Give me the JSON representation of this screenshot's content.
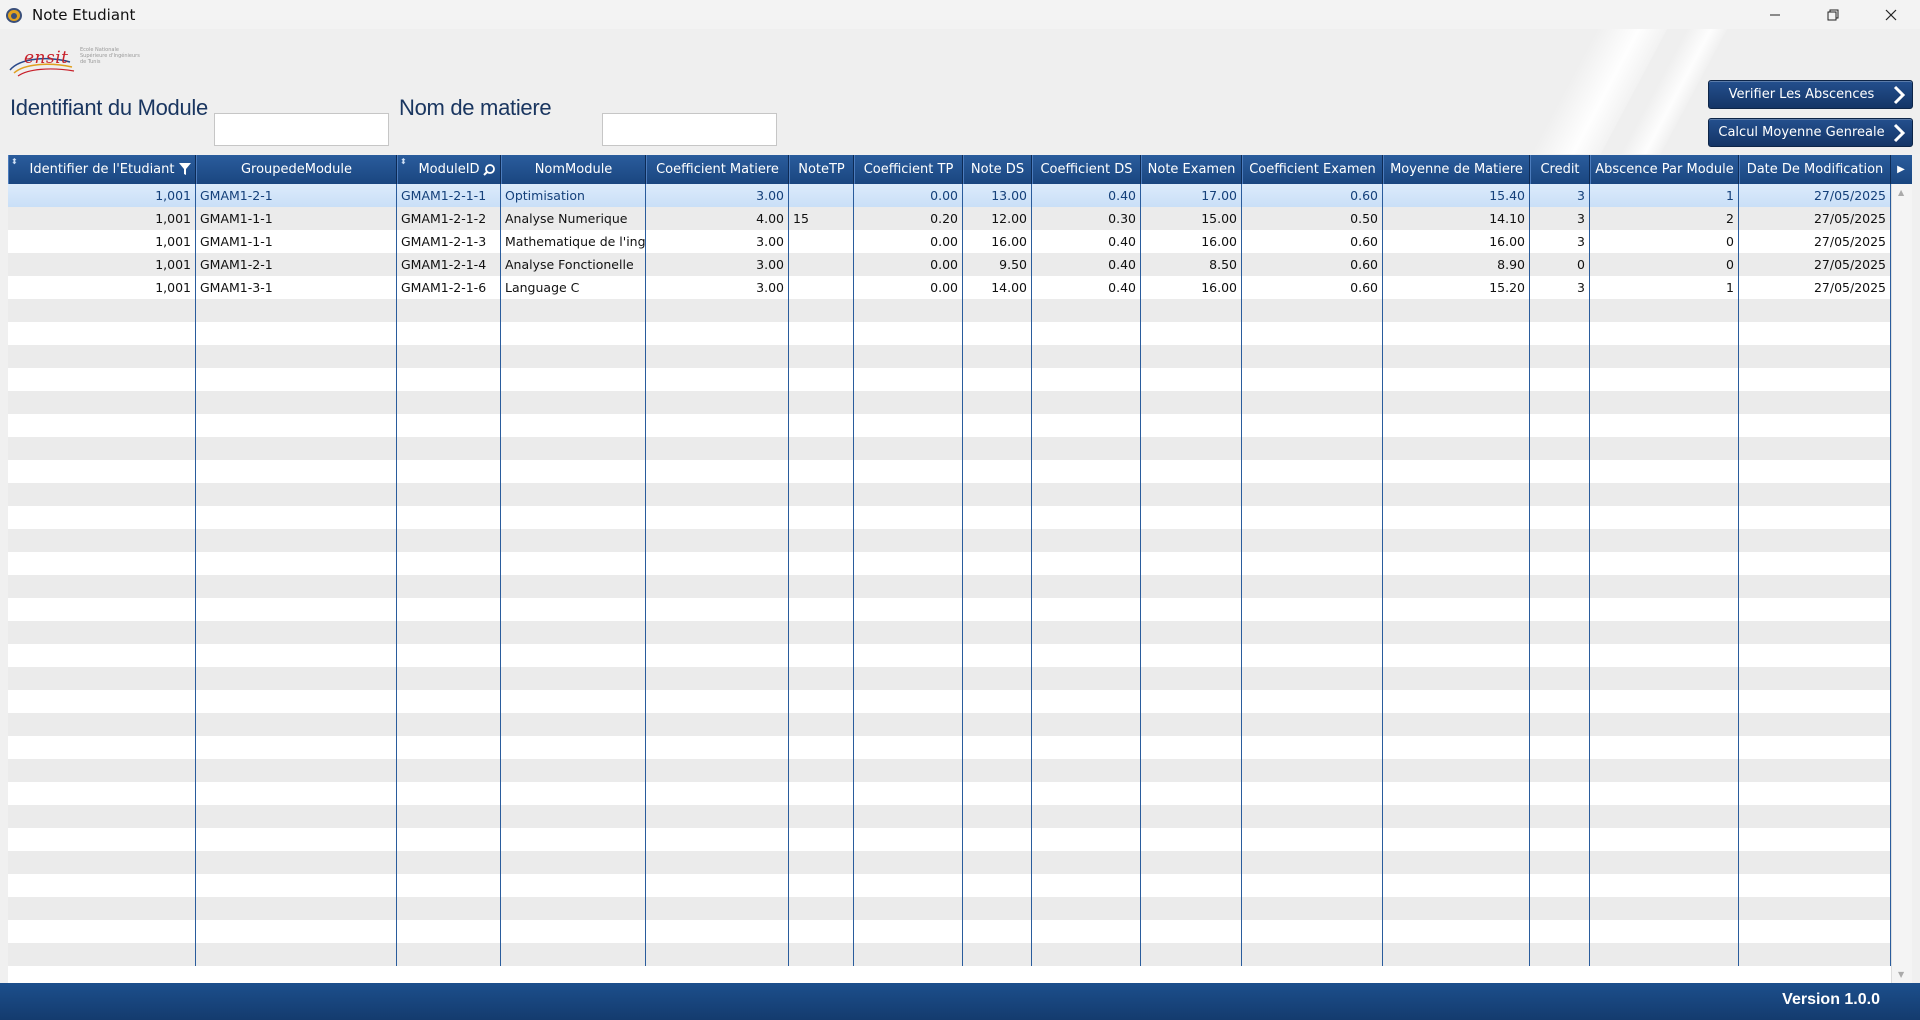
{
  "window": {
    "title": "Note Etudiant"
  },
  "header": {
    "logo_text": "ensit",
    "logo_subtext": "Ecole Nationale Supérieure d'Ingénieurs de Tunis",
    "module_id_label": "Identifiant du Module",
    "module_id_value": "",
    "subject_name_label": "Nom de matiere",
    "subject_name_value": "",
    "verify_absences_label": "Verifier Les Abscences",
    "compute_average_label": "Calcul Moyenne Genreale"
  },
  "grid": {
    "columns": [
      {
        "label": "Identifier de l'Etudiant",
        "width": 188,
        "align": "r",
        "sort": true,
        "filter": "funnel"
      },
      {
        "label": "GroupedeModule",
        "width": 201,
        "align": "l",
        "sort": false,
        "filter": ""
      },
      {
        "label": "ModuleID",
        "width": 104,
        "align": "l",
        "sort": true,
        "filter": "search"
      },
      {
        "label": "NomModule",
        "width": 145,
        "align": "l",
        "sort": false,
        "filter": ""
      },
      {
        "label": "Coefficient Matiere",
        "width": 143,
        "align": "r",
        "sort": false,
        "filter": ""
      },
      {
        "label": "NoteTP",
        "width": 65,
        "align": "l",
        "sort": false,
        "filter": ""
      },
      {
        "label": "Coefficient TP",
        "width": 109,
        "align": "r",
        "sort": false,
        "filter": ""
      },
      {
        "label": "Note DS",
        "width": 69,
        "align": "r",
        "sort": false,
        "filter": ""
      },
      {
        "label": "Coefficient DS",
        "width": 109,
        "align": "r",
        "sort": false,
        "filter": ""
      },
      {
        "label": "Note Examen",
        "width": 101,
        "align": "r",
        "sort": false,
        "filter": ""
      },
      {
        "label": "Coefficient Examen",
        "width": 141,
        "align": "r",
        "sort": false,
        "filter": ""
      },
      {
        "label": "Moyenne de Matiere",
        "width": 147,
        "align": "r",
        "sort": false,
        "filter": ""
      },
      {
        "label": "Credit",
        "width": 60,
        "align": "r",
        "sort": false,
        "filter": ""
      },
      {
        "label": "Abscence Par Module",
        "width": 149,
        "align": "r",
        "sort": false,
        "filter": ""
      },
      {
        "label": "Date De Modification",
        "width": 152,
        "align": "r",
        "sort": false,
        "filter": ""
      }
    ],
    "rows": [
      [
        "1,001",
        "GMAM1-2-1",
        "GMAM1-2-1-1",
        "Optimisation",
        "3.00",
        "",
        "0.00",
        "13.00",
        "0.40",
        "17.00",
        "0.60",
        "15.40",
        "3",
        "1",
        "27/05/2025"
      ],
      [
        "1,001",
        "GMAM1-1-1",
        "GMAM1-2-1-2",
        "Analyse Numerique",
        "4.00",
        "15",
        "0.20",
        "12.00",
        "0.30",
        "15.00",
        "0.50",
        "14.10",
        "3",
        "2",
        "27/05/2025"
      ],
      [
        "1,001",
        "GMAM1-1-1",
        "GMAM1-2-1-3",
        "Mathematique de l'inge",
        "3.00",
        "",
        "0.00",
        "16.00",
        "0.40",
        "16.00",
        "0.60",
        "16.00",
        "3",
        "0",
        "27/05/2025"
      ],
      [
        "1,001",
        "GMAM1-2-1",
        "GMAM1-2-1-4",
        "Analyse Fonctionelle",
        "3.00",
        "",
        "0.00",
        "9.50",
        "0.40",
        "8.50",
        "0.60",
        "8.90",
        "0",
        "0",
        "27/05/2025"
      ],
      [
        "1,001",
        "GMAM1-3-1",
        "GMAM1-2-1-6",
        "Language C",
        "3.00",
        "",
        "0.00",
        "14.00",
        "0.40",
        "16.00",
        "0.60",
        "15.20",
        "3",
        "1",
        "27/05/2025"
      ]
    ],
    "selected_row": 0,
    "empty_rows": 29
  },
  "footer": {
    "version": "Version 1.0.0"
  },
  "colors": {
    "accent": "#1a4680",
    "label": "#1a3660",
    "logo_red": "#c8202a"
  }
}
